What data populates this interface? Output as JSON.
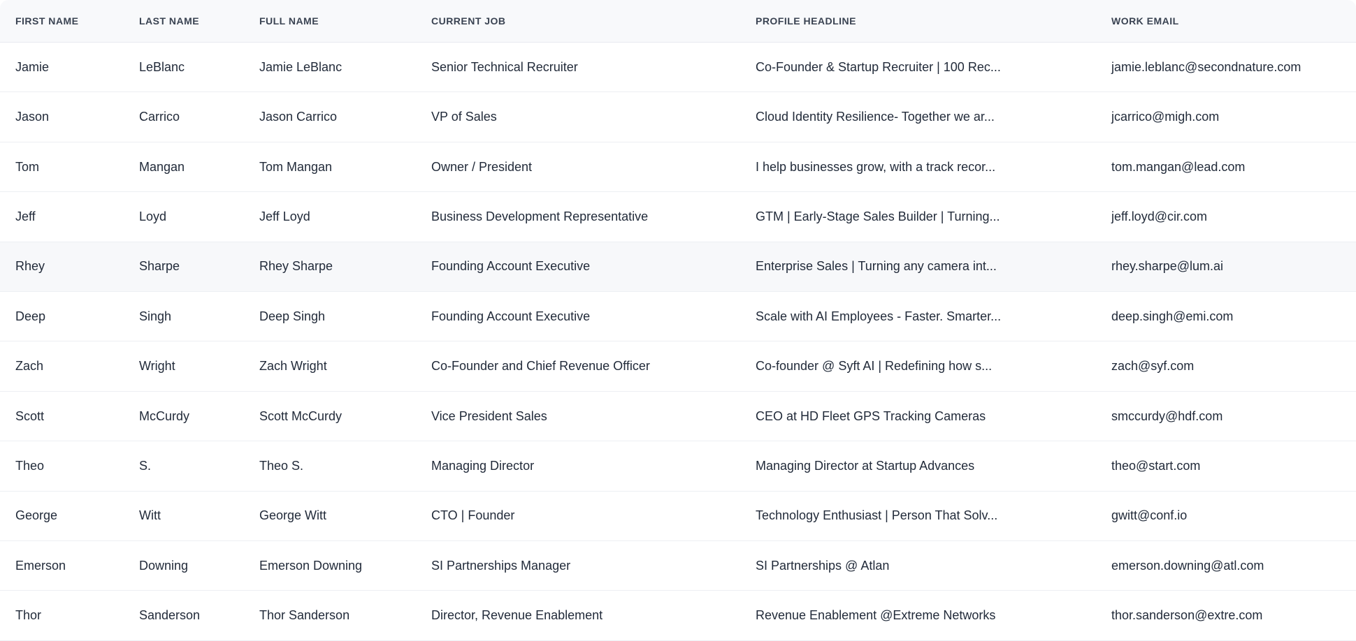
{
  "table": {
    "columns": [
      "First Name",
      "Last Name",
      "Full Name",
      "Current Job",
      "Profile Headline",
      "Work Email"
    ],
    "highlighted_row_index": 4,
    "rows": [
      {
        "first_name": "Jamie",
        "last_name": "LeBlanc",
        "full_name": "Jamie LeBlanc",
        "current_job": "Senior Technical Recruiter",
        "profile_headline": "Co-Founder & Startup Recruiter | 100 Rec...",
        "work_email": "jamie.leblanc@secondnature.com"
      },
      {
        "first_name": "Jason",
        "last_name": "Carrico",
        "full_name": "Jason Carrico",
        "current_job": "VP of Sales",
        "profile_headline": "Cloud Identity Resilience- Together we ar...",
        "work_email": "jcarrico@migh.com"
      },
      {
        "first_name": "Tom",
        "last_name": "Mangan",
        "full_name": "Tom Mangan",
        "current_job": "Owner / President",
        "profile_headline": "I help businesses grow, with a track recor...",
        "work_email": "tom.mangan@lead.com"
      },
      {
        "first_name": "Jeff",
        "last_name": "Loyd",
        "full_name": "Jeff Loyd",
        "current_job": "Business Development Representative",
        "profile_headline": "GTM | Early-Stage Sales Builder | Turning...",
        "work_email": "jeff.loyd@cir.com"
      },
      {
        "first_name": "Rhey",
        "last_name": "Sharpe",
        "full_name": "Rhey Sharpe",
        "current_job": "Founding Account Executive",
        "profile_headline": "Enterprise Sales | Turning any camera int...",
        "work_email": "rhey.sharpe@lum.ai"
      },
      {
        "first_name": "Deep",
        "last_name": "Singh",
        "full_name": "Deep Singh",
        "current_job": "Founding Account Executive",
        "profile_headline": "Scale with AI Employees - Faster. Smarter...",
        "work_email": "deep.singh@emi.com"
      },
      {
        "first_name": "Zach",
        "last_name": "Wright",
        "full_name": "Zach Wright",
        "current_job": "Co-Founder and Chief Revenue Officer",
        "profile_headline": "Co-founder @ Syft AI | Redefining how s...",
        "work_email": "zach@syf.com"
      },
      {
        "first_name": "Scott",
        "last_name": "McCurdy",
        "full_name": "Scott McCurdy",
        "current_job": "Vice President Sales",
        "profile_headline": "CEO at HD Fleet GPS Tracking Cameras",
        "work_email": "smccurdy@hdf.com"
      },
      {
        "first_name": "Theo",
        "last_name": "S.",
        "full_name": "Theo S.",
        "current_job": "Managing Director",
        "profile_headline": "Managing Director at Startup Advances",
        "work_email": "theo@start.com"
      },
      {
        "first_name": "George",
        "last_name": "Witt",
        "full_name": "George Witt",
        "current_job": "CTO | Founder",
        "profile_headline": "Technology Enthusiast | Person That Solv...",
        "work_email": "gwitt@conf.io"
      },
      {
        "first_name": "Emerson",
        "last_name": "Downing",
        "full_name": "Emerson Downing",
        "current_job": "SI Partnerships Manager",
        "profile_headline": "SI Partnerships @ Atlan",
        "work_email": "emerson.downing@atl.com"
      },
      {
        "first_name": "Thor",
        "last_name": "Sanderson",
        "full_name": "Thor Sanderson",
        "current_job": "Director, Revenue Enablement",
        "profile_headline": "Revenue Enablement @Extreme Networks",
        "work_email": "thor.sanderson@extre.com"
      }
    ],
    "colors": {
      "header_background": "#f8f9fb",
      "row_divider": "#edeff3",
      "highlighted_row_background": "#f7f8fa",
      "header_text": "#3a4352",
      "body_text": "#222b3a"
    }
  }
}
